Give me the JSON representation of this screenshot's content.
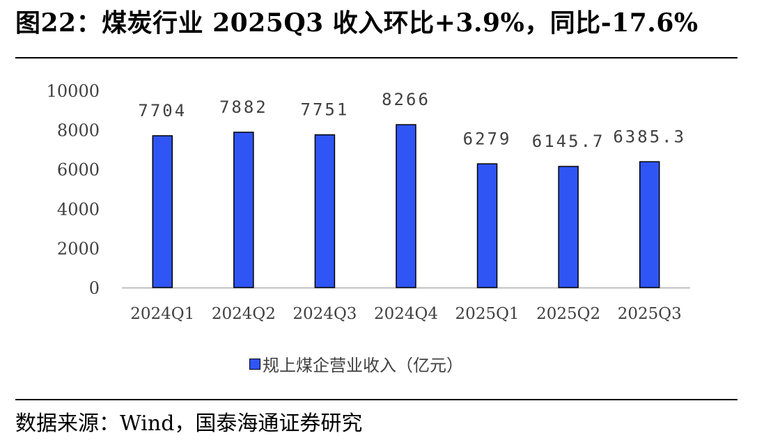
{
  "title": "图22：煤炭行业 2025Q3 收入环比+3.9%，同比-17.6%",
  "source": "数据来源：Wind，国泰海通证券研究",
  "colors": {
    "bar": "#2F55F4",
    "bar_border": "#000000",
    "axis": "#BFBFBF",
    "tick_text": "#404040",
    "label_text": "#404040"
  },
  "chart_data": {
    "type": "bar",
    "categories": [
      "2024Q1",
      "2024Q2",
      "2024Q3",
      "2024Q4",
      "2025Q1",
      "2025Q2",
      "2025Q3"
    ],
    "series": [
      {
        "name": "规上煤企营业收入（亿元）",
        "values": [
          7704,
          7882,
          7751,
          8266,
          6279,
          6145.7,
          6385.3
        ],
        "labels": [
          "7704",
          "7882",
          "7751",
          "8266",
          "6279",
          "6145.7",
          "6385.3"
        ]
      }
    ],
    "yticks": [
      "0",
      "2000",
      "4000",
      "6000",
      "8000",
      "10000"
    ],
    "ylim": [
      0,
      10000
    ],
    "grid": false,
    "legend": "bottom"
  }
}
